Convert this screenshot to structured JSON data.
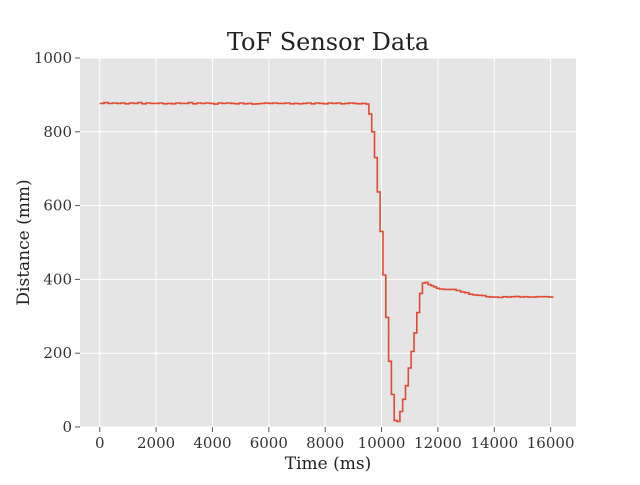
{
  "chart_data": {
    "type": "line",
    "title": "ToF Sensor Data",
    "xlabel": "Time (ms)",
    "ylabel": "Distance (mm)",
    "xlim": [
      -700,
      16900
    ],
    "ylim": [
      0,
      1000
    ],
    "x_ticks": [
      0,
      2000,
      4000,
      6000,
      8000,
      10000,
      12000,
      14000,
      16000
    ],
    "y_ticks": [
      0,
      200,
      400,
      600,
      800,
      1000
    ],
    "grid": true,
    "legend": "none",
    "style": {
      "background_color": "#e5e5e5",
      "grid_color": "#ffffff",
      "line_color": "#e24a33"
    },
    "series": [
      {
        "x": [
          0,
          150,
          300,
          450,
          600,
          750,
          900,
          1050,
          1200,
          1350,
          1500,
          1650,
          1800,
          1950,
          2100,
          2250,
          2400,
          2550,
          2700,
          2850,
          3000,
          3150,
          3300,
          3450,
          3600,
          3750,
          3900,
          4050,
          4200,
          4350,
          4500,
          4650,
          4800,
          4950,
          5100,
          5250,
          5400,
          5550,
          5700,
          5850,
          6000,
          6150,
          6300,
          6450,
          6600,
          6750,
          6900,
          7050,
          7200,
          7350,
          7500,
          7650,
          7800,
          7950,
          8100,
          8250,
          8400,
          8550,
          8700,
          8850,
          9000,
          9150,
          9300,
          9450,
          9550,
          9650,
          9750,
          9850,
          9950,
          10050,
          10150,
          10250,
          10350,
          10450,
          10550,
          10650,
          10750,
          10850,
          10950,
          11050,
          11150,
          11250,
          11350,
          11450,
          11550,
          11650,
          11750,
          11850,
          11950,
          12050,
          12200,
          12350,
          12500,
          12650,
          12800,
          12950,
          13100,
          13250,
          13400,
          13550,
          13700,
          13850,
          14000,
          14150,
          14300,
          14450,
          14600,
          14750,
          14900,
          15050,
          15200,
          15350,
          15500,
          15650,
          15800,
          15950,
          16100
        ],
        "y": [
          877,
          879,
          877,
          878,
          877,
          878,
          876,
          878,
          877,
          879,
          876,
          878,
          877,
          877,
          878,
          876,
          877,
          876,
          878,
          877,
          877,
          879,
          876,
          878,
          877,
          878,
          877,
          875,
          878,
          877,
          878,
          877,
          876,
          878,
          876,
          877,
          875,
          876,
          877,
          878,
          877,
          878,
          877,
          877,
          878,
          876,
          877,
          876,
          877,
          878,
          876,
          878,
          877,
          876,
          878,
          877,
          878,
          876,
          877,
          878,
          877,
          876,
          877,
          875,
          848,
          800,
          730,
          637,
          530,
          412,
          297,
          178,
          88,
          18,
          15,
          42,
          75,
          112,
          160,
          205,
          255,
          310,
          362,
          390,
          392,
          386,
          383,
          380,
          376,
          374,
          373,
          373,
          373,
          370,
          366,
          364,
          360,
          358,
          357,
          356,
          353,
          352,
          352,
          351,
          353,
          352,
          353,
          354,
          352,
          353,
          352,
          352,
          353,
          353,
          353,
          352,
          352
        ]
      }
    ]
  }
}
